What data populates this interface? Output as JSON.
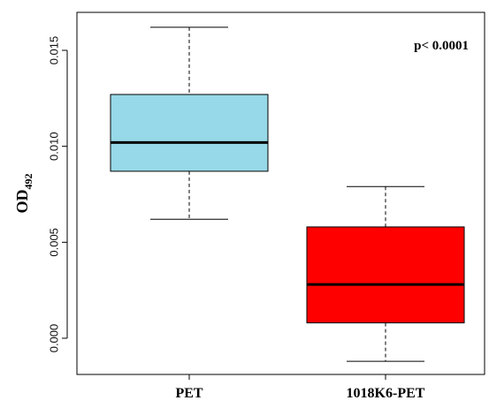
{
  "chart_data": {
    "type": "box",
    "ylabel": "OD",
    "ylabel_subscript": "492",
    "ylim": [
      -0.0015,
      0.017
    ],
    "yticks": [
      0.0,
      0.005,
      0.01,
      0.015
    ],
    "ytick_labels": [
      "0.000",
      "0.005",
      "0.010",
      "0.015"
    ],
    "categories": [
      "PET",
      "1018K6-PET"
    ],
    "series": [
      {
        "category": "PET",
        "whisker_low": 0.0062,
        "q1": 0.0087,
        "median": 0.0102,
        "q3": 0.0127,
        "whisker_high": 0.0162,
        "color": "#97d9e8"
      },
      {
        "category": "1018K6-PET",
        "whisker_low": -0.0012,
        "q1": 0.0008,
        "median": 0.0028,
        "q3": 0.0058,
        "whisker_high": 0.0079,
        "color": "#ff0000"
      }
    ],
    "annotation": "p< 0.0001",
    "annotation_position": "top-right",
    "grid": false
  }
}
